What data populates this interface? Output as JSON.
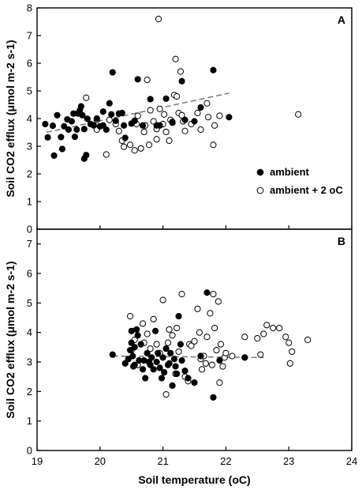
{
  "chart_data": {
    "type": "scatter",
    "xlabel": "Soil temperature (oC)",
    "ylabel": "Soil CO2 efflux (μmol m-2 s-1)",
    "xlim": [
      19,
      24
    ],
    "xticks": [
      "19",
      "20",
      "21",
      "22",
      "23",
      "24"
    ],
    "panels": [
      {
        "label": "A",
        "ylim": [
          0,
          8
        ],
        "yticks": [
          "0",
          "1",
          "2",
          "3",
          "4",
          "5",
          "6",
          "7",
          "8"
        ],
        "legend_position": "right-middle",
        "series": [
          {
            "name": "ambient",
            "marker": "filled-circle",
            "color": "#000000",
            "points": [
              [
                19.13,
                3.8
              ],
              [
                19.17,
                3.32
              ],
              [
                19.25,
                3.74
              ],
              [
                19.27,
                2.66
              ],
              [
                19.32,
                4.12
              ],
              [
                19.38,
                3.33
              ],
              [
                19.4,
                2.9
              ],
              [
                19.43,
                3.72
              ],
              [
                19.48,
                3.97
              ],
              [
                19.5,
                3.6
              ],
              [
                19.55,
                3.9
              ],
              [
                19.58,
                4.18
              ],
              [
                19.6,
                3.34
              ],
              [
                19.63,
                3.6
              ],
              [
                19.65,
                4.18
              ],
              [
                19.68,
                4.3
              ],
              [
                19.7,
                4.44
              ],
              [
                19.72,
                4.12
              ],
              [
                19.75,
                3.62
              ],
              [
                19.75,
                2.55
              ],
              [
                19.78,
                2.68
              ],
              [
                19.8,
                3.99
              ],
              [
                19.85,
                3.8
              ],
              [
                19.9,
                3.75
              ],
              [
                19.95,
                4.0
              ],
              [
                20.0,
                3.72
              ],
              [
                20.05,
                4.25
              ],
              [
                20.05,
                3.75
              ],
              [
                20.1,
                3.6
              ],
              [
                20.15,
                4.55
              ],
              [
                20.18,
                4.15
              ],
              [
                20.2,
                5.67
              ],
              [
                20.25,
                3.92
              ],
              [
                20.3,
                4.18
              ],
              [
                20.35,
                4.2
              ],
              [
                20.38,
                3.75
              ],
              [
                20.4,
                3.3
              ],
              [
                20.5,
                3.82
              ],
              [
                20.55,
                3.92
              ],
              [
                20.6,
                5.42
              ],
              [
                20.68,
                3.75
              ],
              [
                20.8,
                4.7
              ],
              [
                20.9,
                3.75
              ],
              [
                20.95,
                3.75
              ],
              [
                21.05,
                4.72
              ],
              [
                21.15,
                3.85
              ],
              [
                21.3,
                5.35
              ],
              [
                21.35,
                3.95
              ],
              [
                21.5,
                3.9
              ],
              [
                21.6,
                4.4
              ],
              [
                21.8,
                5.75
              ],
              [
                22.05,
                4.05
              ]
            ]
          },
          {
            "name": "ambient + 2 oC",
            "marker": "open-circle",
            "color": "#000000",
            "points": [
              [
                19.78,
                4.75
              ],
              [
                19.95,
                3.6
              ],
              [
                19.95,
                3.95
              ],
              [
                20.1,
                2.7
              ],
              [
                20.15,
                3.95
              ],
              [
                20.25,
                3.8
              ],
              [
                20.3,
                3.55
              ],
              [
                20.35,
                3.2
              ],
              [
                20.38,
                2.98
              ],
              [
                20.48,
                3.05
              ],
              [
                20.55,
                2.85
              ],
              [
                20.58,
                3.8
              ],
              [
                20.6,
                4.1
              ],
              [
                20.65,
                2.92
              ],
              [
                20.7,
                3.52
              ],
              [
                20.72,
                3.75
              ],
              [
                20.75,
                5.4
              ],
              [
                20.78,
                3.05
              ],
              [
                20.8,
                4.3
              ],
              [
                20.85,
                3.9
              ],
              [
                20.9,
                3.62
              ],
              [
                20.9,
                3.25
              ],
              [
                20.93,
                7.6
              ],
              [
                20.95,
                4.35
              ],
              [
                21.0,
                3.8
              ],
              [
                21.02,
                4.15
              ],
              [
                21.05,
                3.52
              ],
              [
                21.1,
                3.2
              ],
              [
                21.12,
                3.95
              ],
              [
                21.15,
                3.88
              ],
              [
                21.18,
                4.85
              ],
              [
                21.2,
                6.15
              ],
              [
                21.22,
                4.8
              ],
              [
                21.25,
                4.2
              ],
              [
                21.28,
                5.7
              ],
              [
                21.3,
                4.12
              ],
              [
                21.32,
                3.9
              ],
              [
                21.35,
                3.55
              ],
              [
                21.45,
                3.8
              ],
              [
                21.55,
                4.2
              ],
              [
                21.6,
                3.6
              ],
              [
                21.7,
                4.55
              ],
              [
                21.72,
                4.05
              ],
              [
                21.8,
                3.05
              ],
              [
                21.82,
                3.75
              ],
              [
                21.9,
                4.1
              ],
              [
                23.15,
                4.15
              ]
            ]
          }
        ],
        "trendline": {
          "style": "dashed",
          "color": "#777777",
          "x": [
            19.15,
            22.05
          ],
          "y": [
            3.5,
            4.92
          ]
        }
      },
      {
        "label": "B",
        "ylim": [
          0,
          7.5
        ],
        "yticks": [
          "0",
          "1",
          "2",
          "3",
          "4",
          "5",
          "6",
          "7"
        ],
        "series": [
          {
            "name": "ambient",
            "marker": "filled-circle",
            "color": "#000000",
            "points": [
              [
                20.2,
                3.25
              ],
              [
                20.4,
                2.95
              ],
              [
                20.45,
                3.1
              ],
              [
                20.48,
                3.4
              ],
              [
                20.5,
                4.05
              ],
              [
                20.5,
                3.65
              ],
              [
                20.52,
                3.2
              ],
              [
                20.53,
                2.85
              ],
              [
                20.55,
                2.9
              ],
              [
                20.55,
                3.5
              ],
              [
                20.58,
                4.1
              ],
              [
                20.6,
                3.9
              ],
              [
                20.62,
                3.05
              ],
              [
                20.65,
                3.6
              ],
              [
                20.68,
                2.75
              ],
              [
                20.7,
                3.05
              ],
              [
                20.72,
                2.45
              ],
              [
                20.75,
                3.3
              ],
              [
                20.78,
                3.0
              ],
              [
                20.8,
                2.9
              ],
              [
                20.82,
                3.15
              ],
              [
                20.85,
                2.75
              ],
              [
                20.88,
                4.05
              ],
              [
                20.9,
                3.0
              ],
              [
                20.92,
                3.3
              ],
              [
                20.95,
                2.8
              ],
              [
                20.98,
                2.45
              ],
              [
                21.0,
                3.15
              ],
              [
                21.02,
                2.65
              ],
              [
                21.05,
                3.45
              ],
              [
                21.08,
                2.9
              ],
              [
                21.1,
                2.95
              ],
              [
                21.12,
                3.3
              ],
              [
                21.15,
                2.2
              ],
              [
                21.18,
                3.1
              ],
              [
                21.2,
                2.85
              ],
              [
                21.22,
                2.6
              ],
              [
                21.25,
                4.55
              ],
              [
                21.28,
                3.6
              ],
              [
                21.3,
                3.05
              ],
              [
                21.35,
                2.7
              ],
              [
                21.4,
                2.45
              ],
              [
                21.5,
                2.3
              ],
              [
                21.6,
                3.2
              ],
              [
                21.7,
                5.35
              ],
              [
                21.8,
                1.8
              ],
              [
                21.9,
                3.05
              ],
              [
                22.3,
                3.15
              ]
            ]
          },
          {
            "name": "ambient + 2 oC",
            "marker": "open-circle",
            "color": "#000000",
            "points": [
              [
                20.48,
                4.55
              ],
              [
                20.5,
                3.4
              ],
              [
                20.55,
                3.75
              ],
              [
                20.6,
                2.9
              ],
              [
                20.68,
                4.3
              ],
              [
                20.7,
                3.65
              ],
              [
                20.75,
                3.95
              ],
              [
                20.8,
                3.45
              ],
              [
                20.85,
                4.45
              ],
              [
                20.9,
                3.6
              ],
              [
                20.95,
                3.3
              ],
              [
                21.0,
                5.1
              ],
              [
                21.05,
                1.9
              ],
              [
                21.08,
                3.65
              ],
              [
                21.1,
                4.1
              ],
              [
                21.15,
                3.9
              ],
              [
                21.2,
                2.6
              ],
              [
                21.22,
                4.15
              ],
              [
                21.25,
                3.35
              ],
              [
                21.3,
                5.3
              ],
              [
                21.35,
                2.5
              ],
              [
                21.4,
                2.35
              ],
              [
                21.42,
                3.6
              ],
              [
                21.45,
                3.55
              ],
              [
                21.5,
                3.7
              ],
              [
                21.55,
                4.8
              ],
              [
                21.58,
                4.0
              ],
              [
                21.6,
                3.1
              ],
              [
                21.62,
                2.75
              ],
              [
                21.65,
                3.2
              ],
              [
                21.68,
                2.95
              ],
              [
                21.7,
                3.85
              ],
              [
                21.75,
                4.65
              ],
              [
                21.78,
                2.9
              ],
              [
                21.8,
                5.3
              ],
              [
                21.82,
                4.15
              ],
              [
                21.85,
                3.4
              ],
              [
                21.88,
                5.05
              ],
              [
                21.9,
                2.3
              ],
              [
                21.92,
                3.6
              ],
              [
                21.95,
                2.85
              ],
              [
                21.98,
                3.15
              ],
              [
                22.0,
                3.3
              ],
              [
                22.1,
                3.2
              ],
              [
                22.3,
                3.85
              ],
              [
                22.5,
                3.8
              ],
              [
                22.55,
                3.25
              ],
              [
                22.6,
                3.95
              ],
              [
                22.65,
                4.25
              ],
              [
                22.75,
                4.15
              ],
              [
                22.85,
                4.15
              ],
              [
                22.95,
                3.85
              ],
              [
                23.0,
                3.65
              ],
              [
                23.02,
                2.95
              ],
              [
                23.05,
                3.35
              ],
              [
                23.3,
                3.75
              ]
            ]
          }
        ],
        "trendline": {
          "style": "dashed",
          "color": "#777777",
          "x": [
            20.2,
            22.6
          ],
          "y": [
            3.2,
            3.15
          ]
        }
      }
    ]
  }
}
